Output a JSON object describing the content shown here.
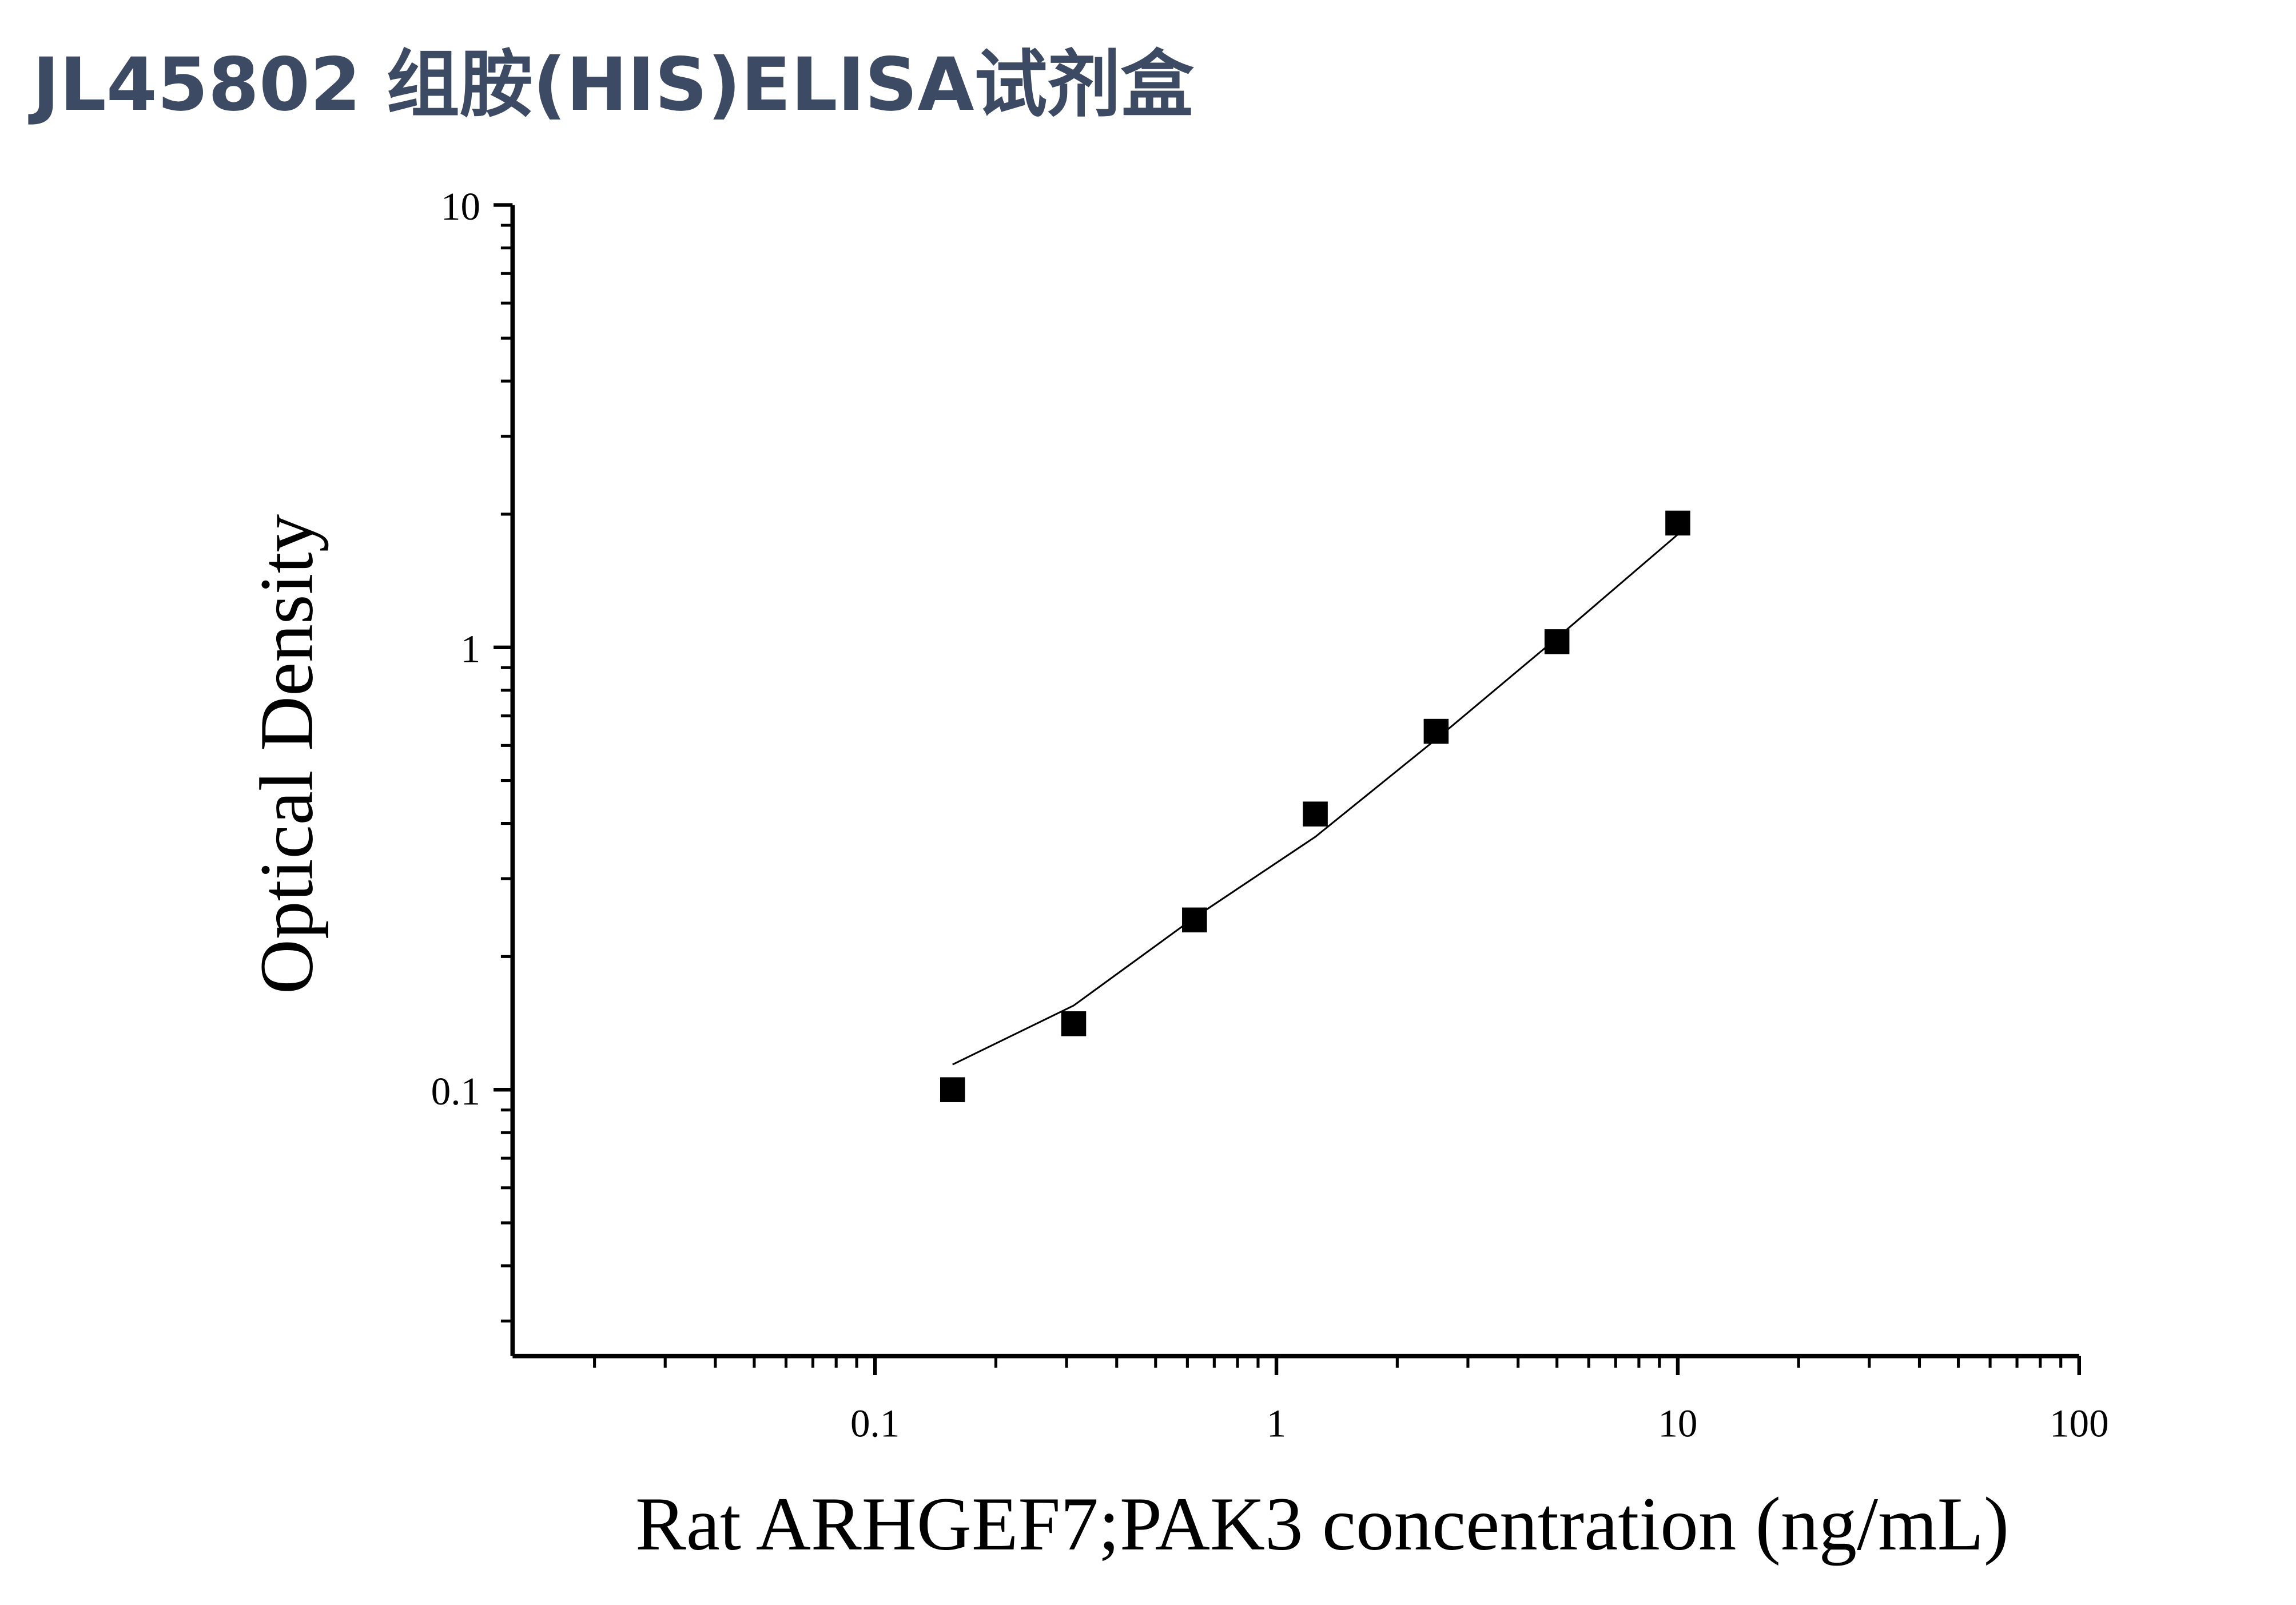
{
  "chart_data": {
    "type": "scatter",
    "title": "JL45802 组胺(HIS)ELISA试剂盒",
    "x_label": "Rat ARHGEF7;PAK3 concentration (ng/mL)",
    "y_label": "Optical Density",
    "x_scale": "log",
    "y_scale": "log",
    "xlim": [
      0.0125,
      100
    ],
    "ylim": [
      0.025,
      10
    ],
    "xticks": [
      0.1,
      1,
      10,
      100
    ],
    "yticks": [
      0.1,
      1,
      10
    ],
    "xminorticks": [
      0.02,
      0.03,
      0.04,
      0.05,
      0.06,
      0.07,
      0.08,
      0.09,
      0.2,
      0.3,
      0.4,
      0.5,
      0.6,
      0.7,
      0.8,
      0.9,
      2,
      3,
      4,
      5,
      6,
      7,
      8,
      9,
      20,
      30,
      40,
      50,
      60,
      70,
      80,
      90
    ],
    "yminorticks": [
      0.03,
      0.04,
      0.05,
      0.06,
      0.07,
      0.08,
      0.09,
      0.2,
      0.3,
      0.4,
      0.5,
      0.6,
      0.7,
      0.8,
      0.9,
      2,
      3,
      4,
      5,
      6,
      7,
      8,
      9
    ],
    "color": "#000000",
    "x": [
      0.156,
      0.3125,
      0.625,
      1.25,
      2.5,
      5,
      10
    ],
    "values": [
      0.1,
      0.141,
      0.242,
      0.42,
      0.646,
      1.03,
      1.91
    ],
    "fit": {
      "x": [
        0.156,
        0.3125,
        0.625,
        1.25,
        2.5,
        5,
        10
      ],
      "values": [
        0.114,
        0.155,
        0.245,
        0.373,
        0.62,
        1.05,
        1.8
      ]
    }
  }
}
